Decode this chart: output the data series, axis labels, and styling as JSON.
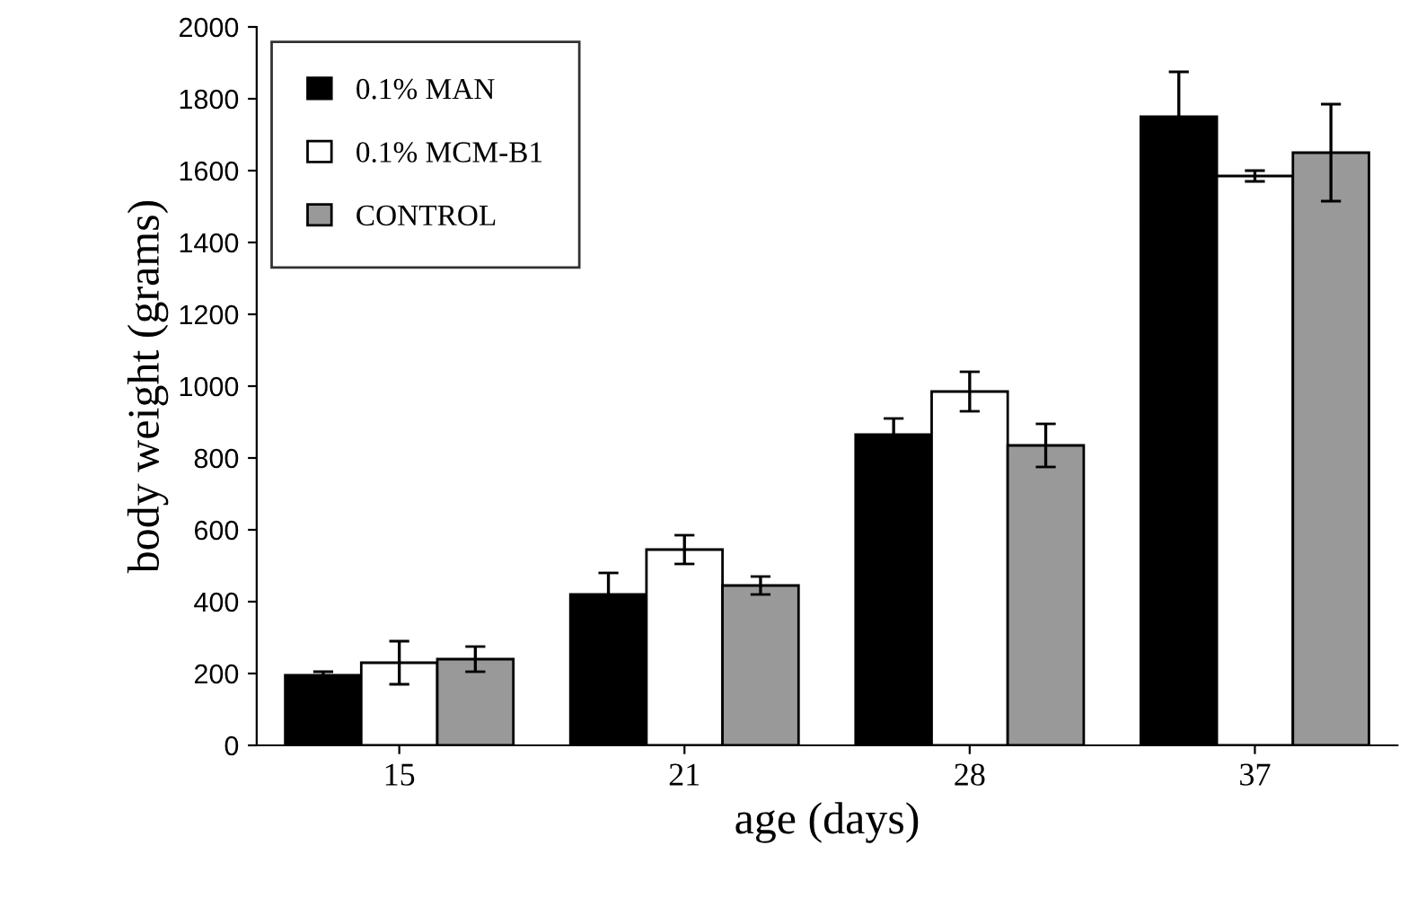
{
  "chart_data": {
    "type": "bar",
    "xlabel": "age (days)",
    "ylabel": "body weight (grams)",
    "categories": [
      "15",
      "21",
      "28",
      "37"
    ],
    "series": [
      {
        "name": "0.1% MAN",
        "color": "#000000",
        "values": [
          195,
          420,
          865,
          1750
        ],
        "errors": [
          10,
          60,
          45,
          125
        ]
      },
      {
        "name": "0.1% MCM-B1",
        "color": "#ffffff",
        "values": [
          230,
          545,
          985,
          1585
        ],
        "errors": [
          60,
          40,
          55,
          15
        ]
      },
      {
        "name": "CONTROL",
        "color": "#999999",
        "values": [
          240,
          445,
          835,
          1650
        ],
        "errors": [
          35,
          25,
          60,
          135
        ]
      }
    ],
    "ylim": [
      0,
      2000
    ],
    "yticks": [
      0,
      200,
      400,
      600,
      800,
      1000,
      1200,
      1400,
      1600,
      1800,
      2000
    ],
    "grid": false,
    "legend": "top left"
  }
}
